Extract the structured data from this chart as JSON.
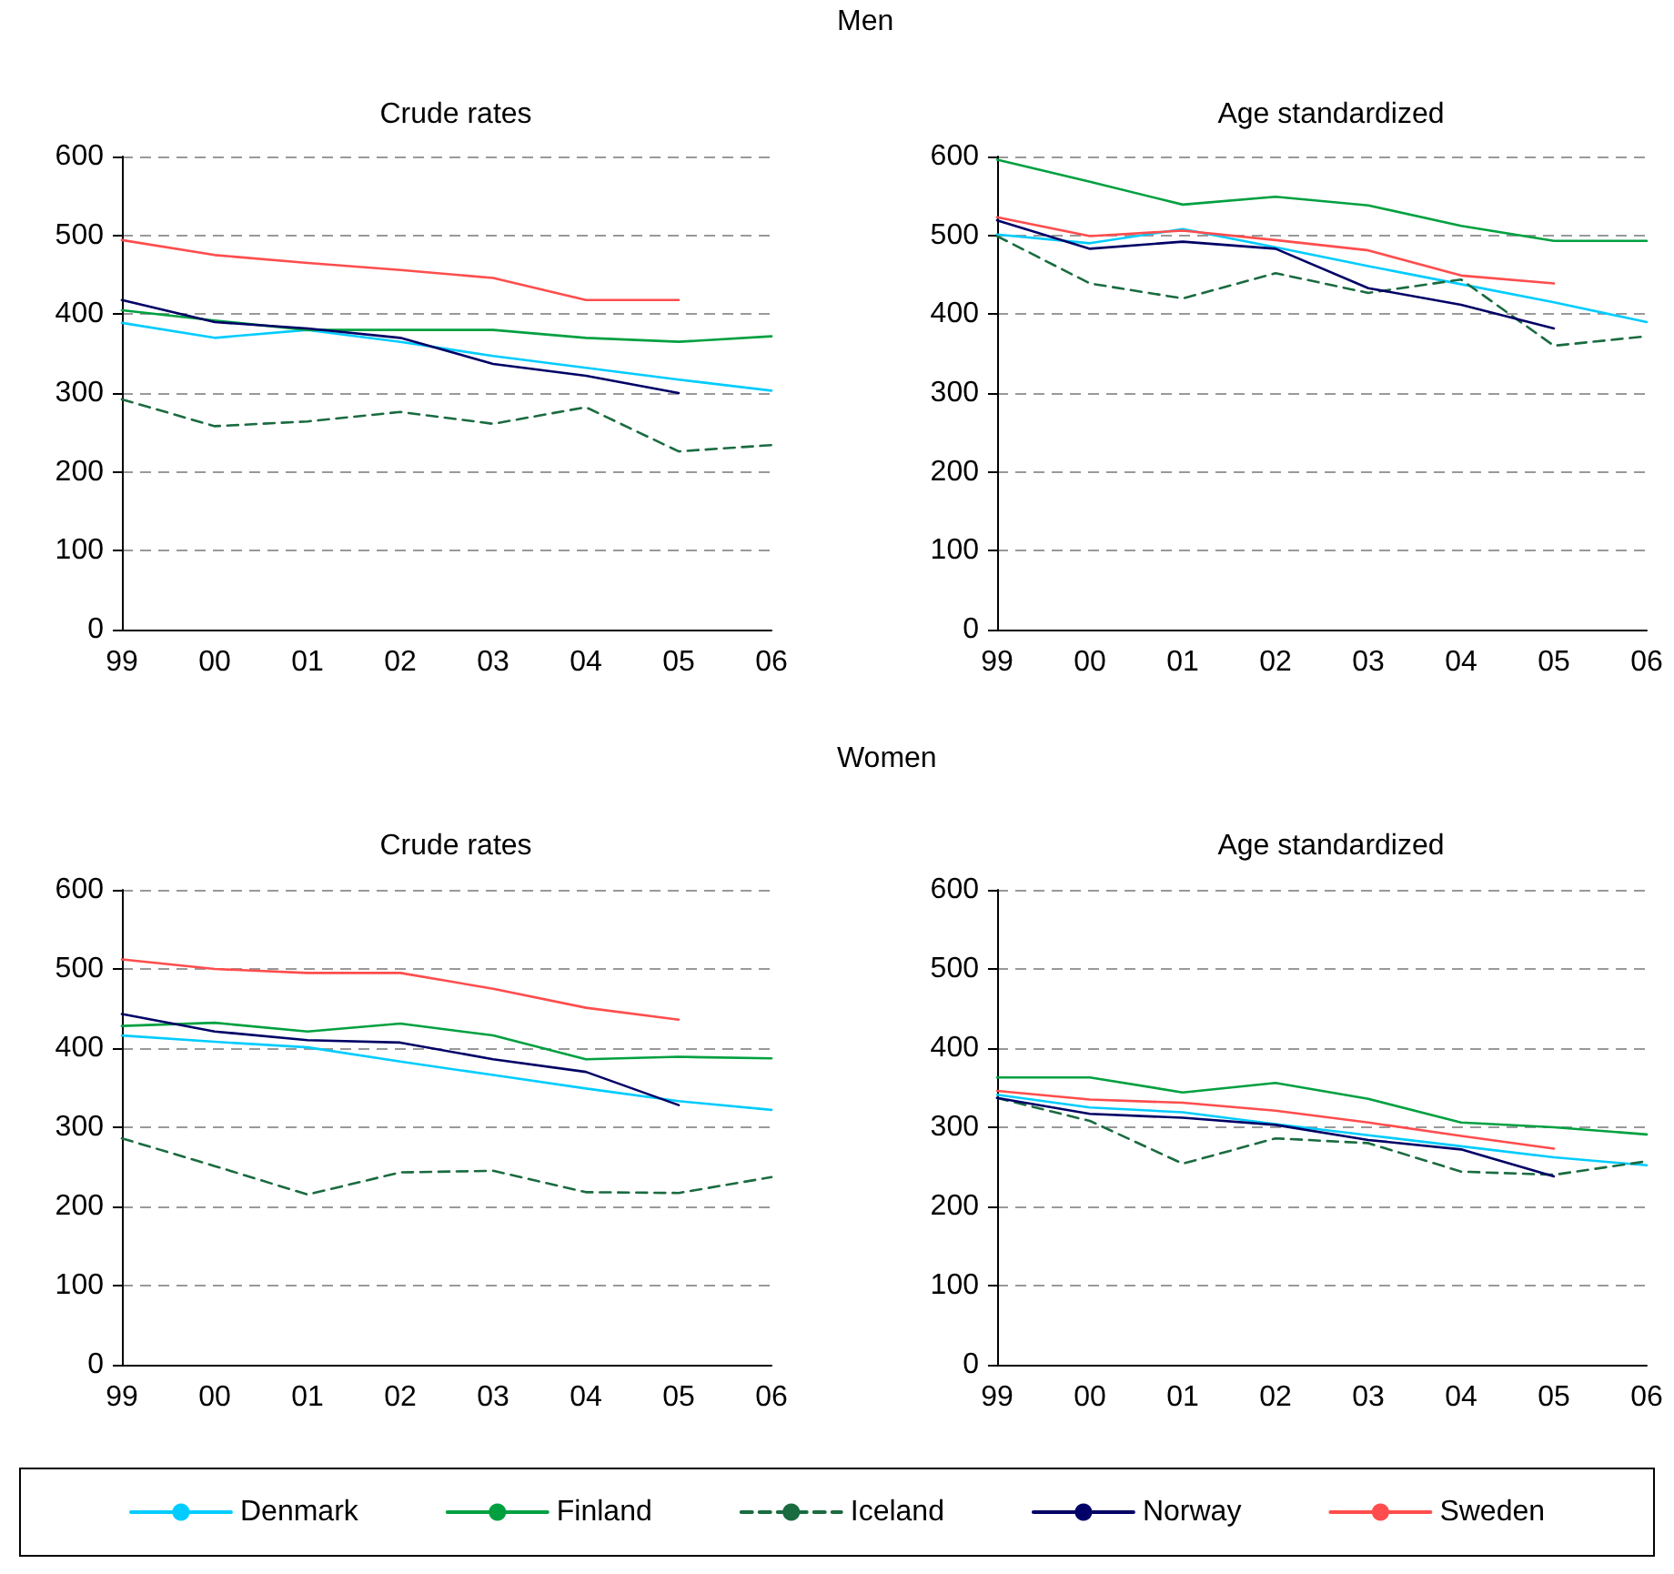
{
  "chart_data": [
    {
      "type": "line",
      "title": "Crude rates",
      "annotations": [
        "Men"
      ],
      "categories": [
        "99",
        "00",
        "01",
        "02",
        "03",
        "04",
        "05",
        "06"
      ],
      "ylim": [
        0,
        600
      ],
      "yticks": [
        0,
        100,
        200,
        300,
        400,
        500,
        600
      ],
      "grid": "y",
      "legend": false,
      "series": [
        {
          "color": "#00ccff",
          "values": [
            389,
            370,
            380,
            365,
            347,
            332,
            317,
            303
          ]
        },
        {
          "color": "#00a040",
          "values": [
            405,
            392,
            380,
            380,
            380,
            370,
            365,
            372
          ]
        },
        {
          "color": "#1a6b40",
          "line_style": "dashed",
          "values": [
            292,
            258,
            264,
            276,
            261,
            282,
            226,
            234
          ]
        },
        {
          "color": "#000066",
          "values": [
            418,
            390,
            382,
            370,
            337,
            322,
            300,
            null
          ]
        },
        {
          "color": "#ff4d4d",
          "values": [
            494,
            475,
            465,
            456,
            446,
            418,
            418,
            null
          ]
        }
      ]
    },
    {
      "type": "line",
      "title": "Age standardized",
      "categories": [
        "99",
        "00",
        "01",
        "02",
        "03",
        "04",
        "05",
        "06"
      ],
      "ylim": [
        0,
        600
      ],
      "yticks": [
        0,
        100,
        200,
        300,
        400,
        500,
        600
      ],
      "grid": "y",
      "legend": false,
      "series": [
        {
          "color": "#00ccff",
          "values": [
            501,
            490,
            508,
            485,
            461,
            438,
            415,
            390
          ]
        },
        {
          "color": "#00a040",
          "values": [
            596,
            568,
            539,
            549,
            538,
            512,
            493,
            493
          ]
        },
        {
          "color": "#1a6b40",
          "line_style": "dashed",
          "values": [
            499,
            439,
            420,
            452,
            427,
            444,
            360,
            372
          ]
        },
        {
          "color": "#000066",
          "values": [
            519,
            483,
            492,
            483,
            433,
            412,
            382,
            null
          ]
        },
        {
          "color": "#ff4d4d",
          "values": [
            523,
            499,
            506,
            494,
            481,
            449,
            439,
            null
          ]
        }
      ]
    },
    {
      "type": "line",
      "title": "Crude rates",
      "annotations": [
        "Women"
      ],
      "categories": [
        "99",
        "00",
        "01",
        "02",
        "03",
        "04",
        "05",
        "06"
      ],
      "ylim": [
        0,
        600
      ],
      "yticks": [
        0,
        100,
        200,
        300,
        400,
        500,
        600
      ],
      "grid": "y",
      "legend": false,
      "series": [
        {
          "color": "#00ccff",
          "values": [
            416,
            408,
            401,
            383,
            366,
            349,
            333,
            322
          ]
        },
        {
          "color": "#00a040",
          "values": [
            428,
            432,
            421,
            431,
            416,
            386,
            389,
            387
          ]
        },
        {
          "color": "#1a6b40",
          "line_style": "dashed",
          "values": [
            286,
            251,
            215,
            243,
            245,
            218,
            217,
            237
          ]
        },
        {
          "color": "#000066",
          "values": [
            443,
            421,
            410,
            407,
            386,
            370,
            328,
            null
          ]
        },
        {
          "color": "#ff4d4d",
          "values": [
            512,
            500,
            495,
            495,
            475,
            451,
            436,
            null
          ]
        }
      ]
    },
    {
      "type": "line",
      "title": "Age standardized",
      "categories": [
        "99",
        "00",
        "01",
        "02",
        "03",
        "04",
        "05",
        "06"
      ],
      "ylim": [
        0,
        600
      ],
      "yticks": [
        0,
        100,
        200,
        300,
        400,
        500,
        600
      ],
      "grid": "y",
      "legend": "bottom",
      "series": [
        {
          "name": "Denmark",
          "color": "#00ccff",
          "values": [
            341,
            325,
            319,
            304,
            290,
            276,
            262,
            252
          ]
        },
        {
          "name": "Finland",
          "color": "#00a040",
          "values": [
            363,
            363,
            344,
            356,
            336,
            306,
            300,
            291
          ]
        },
        {
          "name": "Iceland",
          "color": "#1a6b40",
          "line_style": "dashed",
          "values": [
            337,
            308,
            254,
            286,
            280,
            244,
            240,
            257
          ]
        },
        {
          "name": "Norway",
          "color": "#000066",
          "values": [
            337,
            317,
            312,
            303,
            284,
            272,
            238,
            null
          ]
        },
        {
          "name": "Sweden",
          "color": "#ff4d4d",
          "values": [
            346,
            335,
            331,
            321,
            306,
            289,
            273,
            null
          ]
        }
      ]
    }
  ]
}
